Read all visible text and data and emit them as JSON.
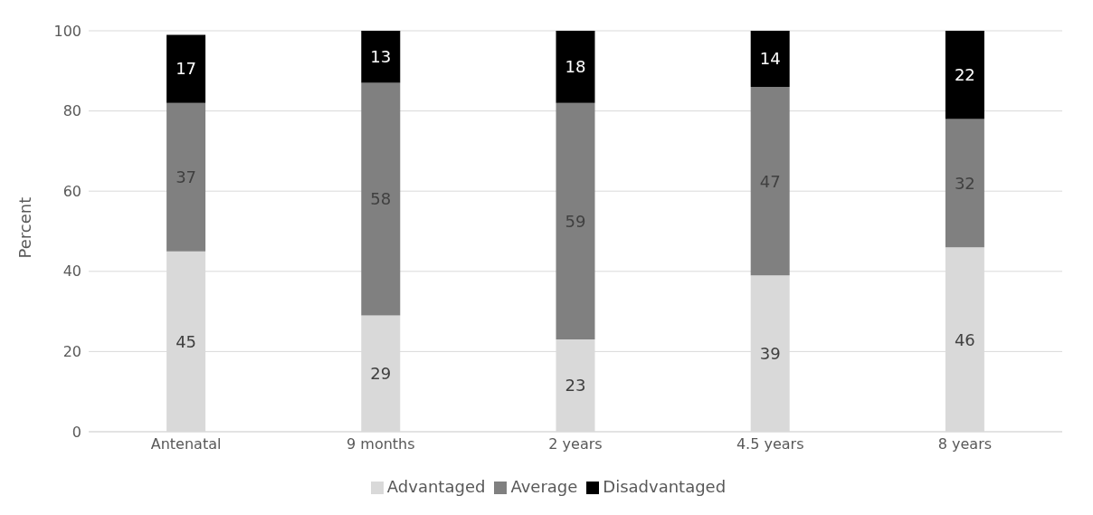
{
  "chart_data": {
    "type": "bar",
    "stacked": true,
    "ylabel": "Percent",
    "categories": [
      "Antenatal",
      "9 months",
      "2 years",
      "4.5 years",
      "8 years"
    ],
    "series": [
      {
        "name": "Advantaged",
        "color": "#d9d9d9",
        "values": [
          45,
          29,
          23,
          39,
          46
        ]
      },
      {
        "name": "Average",
        "color": "#808080",
        "values": [
          37,
          58,
          59,
          47,
          32
        ]
      },
      {
        "name": "Disadvantaged",
        "color": "#000000",
        "values": [
          17,
          13,
          18,
          14,
          22
        ]
      }
    ],
    "ylim": [
      0,
      100
    ],
    "yticks": [
      0,
      20,
      40,
      60,
      80,
      100
    ],
    "grid": "y",
    "legend": "bottom",
    "data_labels": true
  }
}
